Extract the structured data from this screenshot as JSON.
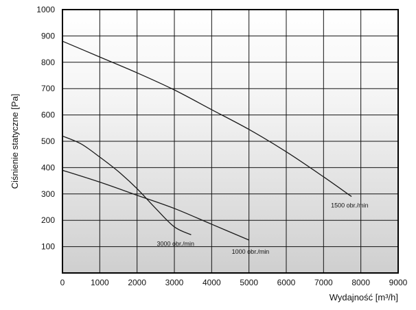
{
  "chart_data": {
    "type": "line",
    "xlabel": "Wydajność [m³/h]",
    "ylabel": "Ciśnienie statyczne [Pa]",
    "xlim": [
      0,
      9000
    ],
    "ylim": [
      0,
      1000
    ],
    "x_ticks": [
      0,
      1000,
      2000,
      3000,
      4000,
      5000,
      6000,
      7000,
      8000,
      9000
    ],
    "y_ticks": [
      100,
      200,
      300,
      400,
      500,
      600,
      700,
      800,
      900,
      1000
    ],
    "grid": true,
    "plot_background": "gradient white to grey",
    "line_color": "#1a1a1a",
    "series": [
      {
        "name": "1500 obr./min",
        "x": [
          0,
          1000,
          2000,
          3000,
          4000,
          5000,
          6000,
          7000,
          7750
        ],
        "y": [
          880,
          820,
          760,
          695,
          620,
          545,
          460,
          365,
          290
        ]
      },
      {
        "name": "3000 obr./min",
        "x": [
          0,
          500,
          1000,
          1500,
          2000,
          2500,
          3000,
          3450
        ],
        "y": [
          520,
          490,
          440,
          385,
          320,
          245,
          175,
          145
        ]
      },
      {
        "name": "1000 obr./min",
        "x": [
          0,
          1000,
          2000,
          3000,
          4000,
          5000
        ],
        "y": [
          390,
          345,
          295,
          245,
          185,
          125
        ]
      }
    ]
  }
}
